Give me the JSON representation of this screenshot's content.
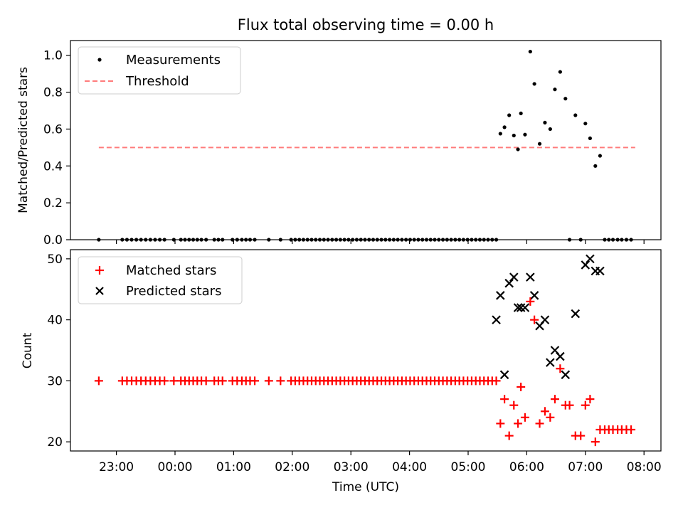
{
  "chart_data": [
    {
      "type": "scatter",
      "title": "Flux total observing time = 0.00 h",
      "ylabel": "Matched/Predicted stars",
      "xlabel": "",
      "ylim": [
        0,
        1.08
      ],
      "yticks": [
        0.0,
        0.2,
        0.4,
        0.6,
        0.8,
        1.0
      ],
      "ytick_labels": [
        "0.0",
        "0.2",
        "0.4",
        "0.6",
        "0.8",
        "1.0"
      ],
      "legend_position": "top-left",
      "grid": false,
      "series": [
        {
          "name": "Measurements",
          "color": "#000000",
          "marker": "dot",
          "x_hours": [
            -1.3,
            -0.9,
            -0.82,
            -0.74,
            -0.66,
            -0.58,
            -0.5,
            -0.42,
            -0.34,
            -0.26,
            -0.18,
            -0.02,
            0.1,
            0.17,
            0.24,
            0.31,
            0.38,
            0.45,
            0.53,
            0.67,
            0.74,
            0.81,
            0.98,
            1.06,
            1.14,
            1.21,
            1.28,
            1.36,
            1.6,
            1.8,
            1.98,
            2.05,
            2.12,
            2.19,
            2.26,
            2.33,
            2.4,
            2.47,
            2.54,
            2.61,
            2.68,
            2.75,
            2.82,
            2.89,
            2.96,
            3.03,
            3.1,
            3.17,
            3.24,
            3.31,
            3.38,
            3.45,
            3.52,
            3.59,
            3.66,
            3.73,
            3.8,
            3.87,
            3.94,
            4.01,
            4.08,
            4.15,
            4.22,
            4.29,
            4.36,
            4.43,
            4.5,
            4.57,
            4.64,
            4.71,
            4.78,
            4.85,
            4.92,
            4.99,
            5.06,
            5.13,
            5.2,
            5.27,
            5.34,
            5.41,
            5.48,
            5.55,
            5.62,
            5.7,
            5.78,
            5.85,
            5.9,
            5.97,
            6.06,
            6.13,
            6.22,
            6.31,
            6.4,
            6.48,
            6.57,
            6.66,
            6.73,
            6.83,
            6.92,
            7.0,
            7.08,
            7.17,
            7.25,
            7.33,
            7.4,
            7.47,
            7.55,
            7.62,
            7.7,
            7.78
          ],
          "y": [
            0,
            0,
            0,
            0,
            0,
            0,
            0,
            0,
            0,
            0,
            0,
            0,
            0,
            0,
            0,
            0,
            0,
            0,
            0,
            0,
            0,
            0,
            0,
            0,
            0,
            0,
            0,
            0,
            0,
            0,
            0,
            0,
            0,
            0,
            0,
            0,
            0,
            0,
            0,
            0,
            0,
            0,
            0,
            0,
            0,
            0,
            0,
            0,
            0,
            0,
            0,
            0,
            0,
            0,
            0,
            0,
            0,
            0,
            0,
            0,
            0,
            0,
            0,
            0,
            0,
            0,
            0,
            0,
            0,
            0,
            0,
            0,
            0,
            0,
            0,
            0,
            0,
            0,
            0,
            0,
            0,
            0.575,
            0.61,
            0.675,
            0.565,
            0.49,
            0.685,
            0.57,
            1.02,
            0.845,
            0.52,
            0.635,
            0.6,
            0.815,
            0.91,
            0.765,
            0,
            0.675,
            0,
            0.63,
            0.55,
            0.4,
            0.455,
            0,
            0,
            0,
            0,
            0,
            0,
            0
          ]
        },
        {
          "name": "Threshold",
          "color": "#ff7b7b",
          "style": "dashed",
          "x_hours": [
            -1.3,
            7.85
          ],
          "y": [
            0.5,
            0.5
          ]
        }
      ]
    },
    {
      "type": "scatter",
      "xlabel": "Time (UTC)",
      "ylabel": "Count",
      "ylim": [
        18.5,
        51.5
      ],
      "yticks": [
        20,
        30,
        40,
        50
      ],
      "ytick_labels": [
        "20",
        "30",
        "40",
        "50"
      ],
      "x_ticks_hours": [
        -1,
        0,
        1,
        2,
        3,
        4,
        5,
        6,
        7,
        8
      ],
      "x_tick_labels": [
        "23:00",
        "00:00",
        "01:00",
        "02:00",
        "03:00",
        "04:00",
        "05:00",
        "06:00",
        "07:00",
        "08:00"
      ],
      "legend_position": "top-left",
      "grid": false,
      "series": [
        {
          "name": "Matched stars",
          "color": "#ff0000",
          "marker": "plus",
          "x_hours": [
            -1.3,
            -0.9,
            -0.82,
            -0.74,
            -0.66,
            -0.58,
            -0.5,
            -0.42,
            -0.34,
            -0.26,
            -0.18,
            -0.02,
            0.1,
            0.17,
            0.24,
            0.31,
            0.38,
            0.45,
            0.53,
            0.67,
            0.74,
            0.81,
            0.98,
            1.06,
            1.14,
            1.21,
            1.28,
            1.36,
            1.6,
            1.8,
            1.98,
            2.05,
            2.12,
            2.19,
            2.26,
            2.33,
            2.4,
            2.47,
            2.54,
            2.61,
            2.68,
            2.75,
            2.82,
            2.89,
            2.96,
            3.03,
            3.1,
            3.17,
            3.24,
            3.31,
            3.38,
            3.45,
            3.52,
            3.59,
            3.66,
            3.73,
            3.8,
            3.87,
            3.94,
            4.01,
            4.08,
            4.15,
            4.22,
            4.29,
            4.36,
            4.43,
            4.5,
            4.57,
            4.64,
            4.71,
            4.78,
            4.85,
            4.92,
            4.99,
            5.06,
            5.13,
            5.2,
            5.27,
            5.34,
            5.41,
            5.48,
            5.55,
            5.62,
            5.7,
            5.78,
            5.85,
            5.9,
            5.97,
            6.06,
            6.13,
            6.22,
            6.31,
            6.4,
            6.48,
            6.57,
            6.66,
            6.73,
            6.83,
            6.92,
            7.0,
            7.08,
            7.17,
            7.25,
            7.33,
            7.4,
            7.47,
            7.55,
            7.62,
            7.7,
            7.78
          ],
          "y": [
            30,
            30,
            30,
            30,
            30,
            30,
            30,
            30,
            30,
            30,
            30,
            30,
            30,
            30,
            30,
            30,
            30,
            30,
            30,
            30,
            30,
            30,
            30,
            30,
            30,
            30,
            30,
            30,
            30,
            30,
            30,
            30,
            30,
            30,
            30,
            30,
            30,
            30,
            30,
            30,
            30,
            30,
            30,
            30,
            30,
            30,
            30,
            30,
            30,
            30,
            30,
            30,
            30,
            30,
            30,
            30,
            30,
            30,
            30,
            30,
            30,
            30,
            30,
            30,
            30,
            30,
            30,
            30,
            30,
            30,
            30,
            30,
            30,
            30,
            30,
            30,
            30,
            30,
            30,
            30,
            30,
            23,
            27,
            21,
            26,
            23,
            29,
            24,
            43,
            40,
            23,
            25,
            24,
            27,
            32,
            26,
            26,
            21,
            21,
            26,
            27,
            20,
            22,
            22,
            22,
            22,
            22,
            22,
            22,
            22
          ]
        },
        {
          "name": "Predicted stars",
          "color": "#000000",
          "marker": "x",
          "x_hours": [
            5.48,
            5.55,
            5.62,
            5.7,
            5.78,
            5.85,
            5.9,
            5.97,
            6.06,
            6.13,
            6.22,
            6.31,
            6.4,
            6.48,
            6.57,
            6.66,
            6.83,
            7.0,
            7.08,
            7.17,
            7.25
          ],
          "y": [
            40,
            44,
            31,
            46,
            47,
            42,
            42,
            42,
            47,
            44,
            39,
            40,
            33,
            35,
            34,
            31,
            41,
            49,
            50,
            48,
            48
          ]
        }
      ]
    }
  ]
}
